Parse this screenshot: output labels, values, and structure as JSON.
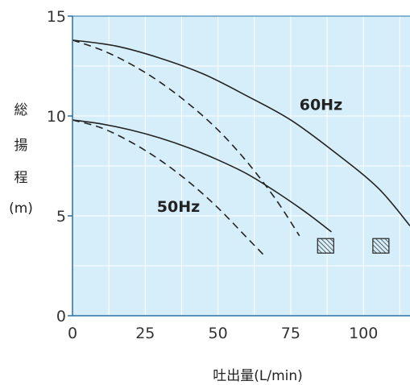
{
  "chart_data": {
    "type": "line",
    "title": "",
    "xlabel": "吐出量(L/min)",
    "ylabel": [
      "総",
      "揚",
      "程",
      "(m)"
    ],
    "xlim": [
      0,
      116
    ],
    "ylim": [
      0,
      15
    ],
    "x_ticks": [
      0,
      25,
      50,
      75,
      100
    ],
    "y_ticks": [
      0,
      5,
      10,
      15
    ],
    "grid": true,
    "background_color": "#d6eef9",
    "grid_color": "#ffffff",
    "line_color": "#222222",
    "series": [
      {
        "name": "60Hz",
        "style": "solid",
        "x": [
          0,
          15,
          30,
          45,
          60,
          75,
          90,
          105,
          116
        ],
        "y": [
          13.8,
          13.5,
          12.9,
          12.1,
          11.0,
          9.8,
          8.2,
          6.4,
          4.5
        ]
      },
      {
        "name": "60Hz",
        "style": "dashed",
        "x": [
          0,
          10,
          20,
          30,
          40,
          50,
          60,
          70,
          78
        ],
        "y": [
          13.8,
          13.3,
          12.6,
          11.7,
          10.6,
          9.3,
          7.7,
          5.8,
          4.0
        ]
      },
      {
        "name": "50Hz",
        "style": "solid",
        "x": [
          0,
          10,
          20,
          30,
          40,
          50,
          60,
          70,
          80,
          89
        ],
        "y": [
          9.8,
          9.6,
          9.3,
          8.9,
          8.4,
          7.8,
          7.1,
          6.2,
          5.2,
          4.2
        ]
      },
      {
        "name": "50Hz",
        "style": "dashed",
        "x": [
          0,
          10,
          20,
          30,
          40,
          50,
          60,
          66
        ],
        "y": [
          9.8,
          9.4,
          8.7,
          7.8,
          6.7,
          5.4,
          3.9,
          3.0
        ]
      }
    ],
    "curve_labels": [
      {
        "text": "60Hz",
        "x": 78,
        "y": 10.3
      },
      {
        "text": "50Hz",
        "x": 29,
        "y": 5.2
      }
    ],
    "hatched_markers": [
      {
        "x": 87,
        "y": 3.5
      },
      {
        "x": 106,
        "y": 3.5
      }
    ]
  }
}
